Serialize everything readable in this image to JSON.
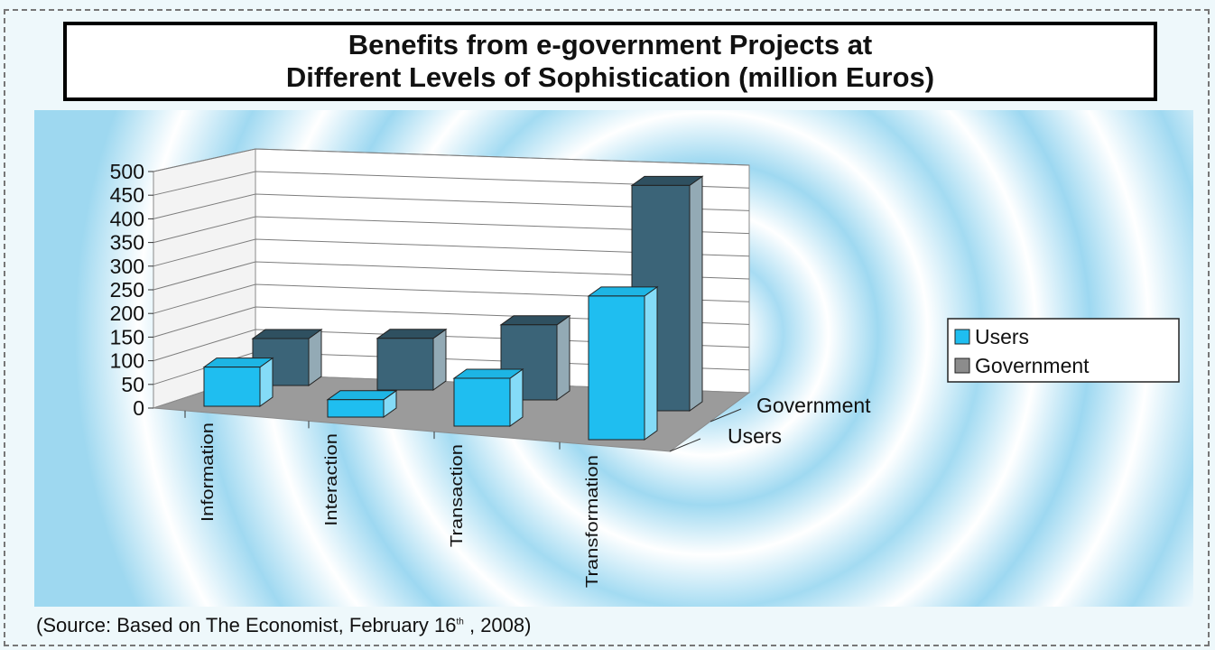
{
  "chart_data": {
    "type": "bar",
    "title": "Benefits from e-government Projects at Different Levels of Sophistication (million Euros)",
    "title_lines": [
      "Benefits from e-government Projects at",
      "Different Levels of Sophistication (million Euros)"
    ],
    "categories": [
      "Information",
      "Interaction",
      "Transaction",
      "Transformation"
    ],
    "series": [
      {
        "name": "Users",
        "values": [
          90,
          40,
          110,
          330
        ],
        "color": "#1fbef0"
      },
      {
        "name": "Government",
        "values": [
          100,
          110,
          160,
          480
        ],
        "color": "#3b6478"
      }
    ],
    "depth_labels": [
      "Government",
      "Users"
    ],
    "yticks": [
      "0",
      "50",
      "100",
      "150",
      "200",
      "250",
      "300",
      "350",
      "400",
      "450",
      "500"
    ],
    "ylim": [
      0,
      500
    ],
    "legend": {
      "position": "right",
      "items": [
        "Users",
        "Government"
      ]
    },
    "grid": true,
    "style": "3d-clustered-depth"
  },
  "source": {
    "prefix": "(Source: Based on The Economist, February 16",
    "suffix": "th",
    "tail": " , 2008)"
  }
}
